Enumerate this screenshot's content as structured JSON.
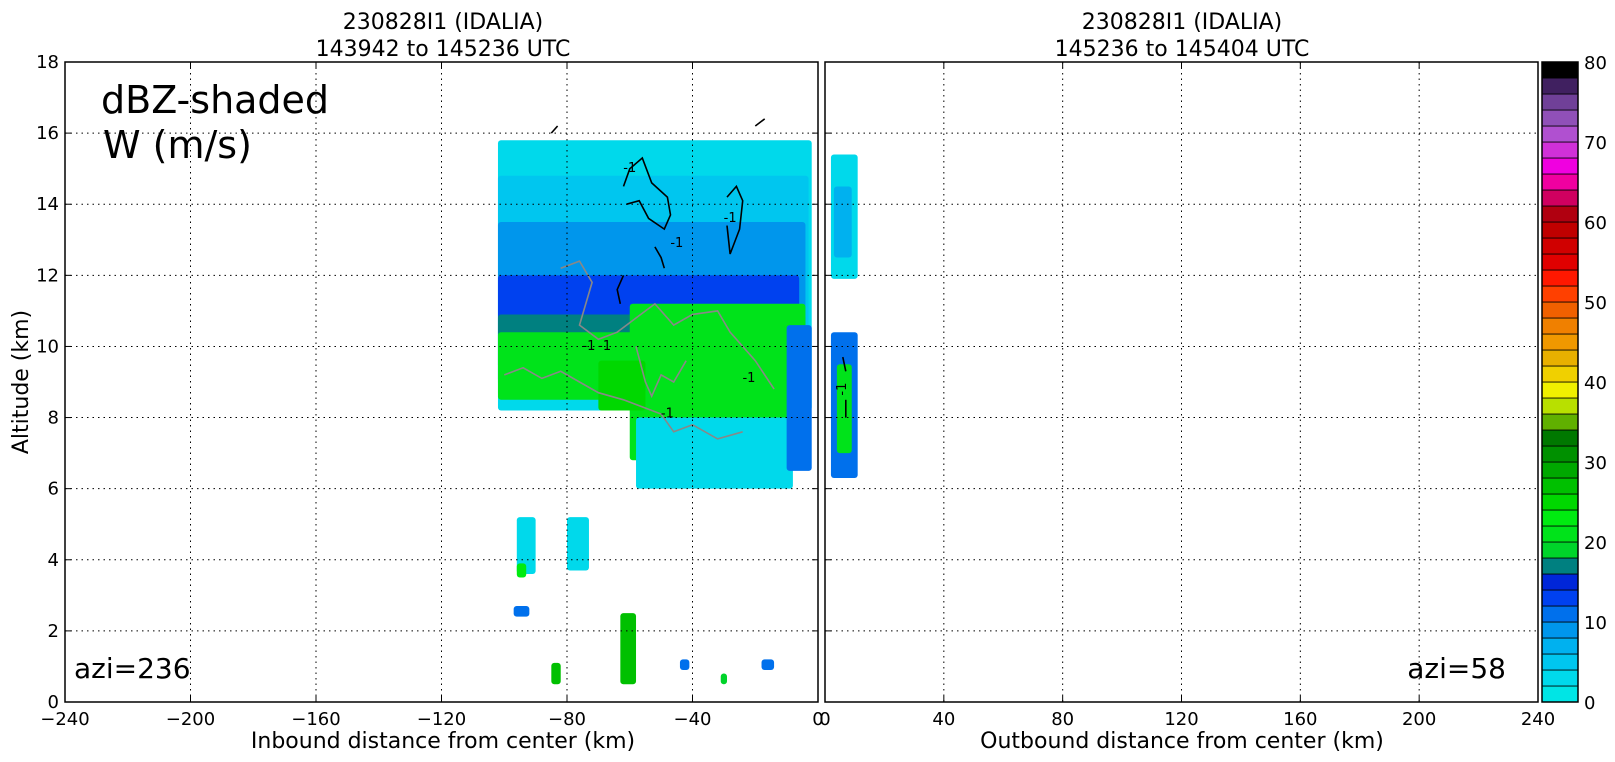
{
  "chart_data": [
    {
      "type": "heatmap",
      "title_line1": "230828I1 (IDALIA)",
      "title_line2": "143942 to 145236 UTC",
      "xlabel": "Inbound distance from center (km)",
      "ylabel": "Altitude (km)",
      "xlim": [
        -240,
        0
      ],
      "ylim": [
        0,
        18
      ],
      "xticks": [
        -240,
        -200,
        -160,
        -120,
        -80,
        -40,
        0
      ],
      "xtick_labels": [
        "−240",
        "−200",
        "−160",
        "−120",
        "−80",
        "−40",
        "0"
      ],
      "yticks": [
        0,
        2,
        4,
        6,
        8,
        10,
        12,
        14,
        16,
        18
      ],
      "grid": true,
      "annotation_main_line1": "dBZ-shaded",
      "annotation_main_line2": "W (m/s)",
      "annotation_azi": "azi=236",
      "contour_label": "-1",
      "reflectivity_regions": [
        {
          "dbz": 2,
          "x": [
            -102,
            -2
          ],
          "y": [
            8.2,
            15.8
          ]
        },
        {
          "dbz": 5,
          "x": [
            -102,
            -3
          ],
          "y": [
            8.6,
            14.8
          ]
        },
        {
          "dbz": 8,
          "x": [
            -102,
            -4
          ],
          "y": [
            8.9,
            13.5
          ]
        },
        {
          "dbz": 12,
          "x": [
            -102,
            -6
          ],
          "y": [
            9.0,
            12.0
          ]
        },
        {
          "dbz": 16,
          "x": [
            -102,
            -4
          ],
          "y": [
            9.4,
            10.9
          ]
        },
        {
          "dbz": 21,
          "x": [
            -102,
            -4
          ],
          "y": [
            8.5,
            10.4
          ]
        },
        {
          "dbz": 21,
          "x": [
            -60,
            -4
          ],
          "y": [
            6.8,
            11.2
          ]
        },
        {
          "dbz": 24,
          "x": [
            -70,
            -55
          ],
          "y": [
            8.2,
            9.6
          ]
        },
        {
          "dbz": 3,
          "x": [
            -58,
            -8
          ],
          "y": [
            6.0,
            8.0
          ]
        },
        {
          "dbz": 10,
          "x": [
            -10,
            -2
          ],
          "y": [
            6.5,
            10.6
          ]
        },
        {
          "dbz": 2,
          "x": [
            -96,
            -90
          ],
          "y": [
            3.6,
            5.2
          ]
        },
        {
          "dbz": 2,
          "x": [
            -80,
            -73
          ],
          "y": [
            3.7,
            5.2
          ]
        },
        {
          "dbz": 22,
          "x": [
            -96,
            -93
          ],
          "y": [
            3.5,
            3.9
          ]
        },
        {
          "dbz": 10,
          "x": [
            -97,
            -92
          ],
          "y": [
            2.4,
            2.7
          ]
        },
        {
          "dbz": 26,
          "x": [
            -63,
            -58
          ],
          "y": [
            0.5,
            2.5
          ]
        },
        {
          "dbz": 26,
          "x": [
            -85,
            -82
          ],
          "y": [
            0.5,
            1.1
          ]
        },
        {
          "dbz": 10,
          "x": [
            -44,
            -41
          ],
          "y": [
            0.9,
            1.2
          ]
        },
        {
          "dbz": 10,
          "x": [
            -18,
            -14
          ],
          "y": [
            0.9,
            1.2
          ]
        },
        {
          "dbz": 18,
          "x": [
            -31,
            -29
          ],
          "y": [
            0.5,
            0.8
          ]
        }
      ]
    },
    {
      "type": "heatmap",
      "title_line1": "230828I1 (IDALIA)",
      "title_line2": "145236 to 145404 UTC",
      "xlabel": "Outbound distance from center (km)",
      "ylabel": "",
      "xlim": [
        0,
        240
      ],
      "ylim": [
        0,
        18
      ],
      "xticks": [
        0,
        40,
        80,
        120,
        160,
        200,
        240
      ],
      "xtick_labels": [
        "0",
        "40",
        "80",
        "120",
        "160",
        "200",
        "240"
      ],
      "grid": true,
      "annotation_azi": "azi=58",
      "contour_label": "-1",
      "reflectivity_regions": [
        {
          "dbz": 3,
          "x": [
            2,
            11
          ],
          "y": [
            11.9,
            15.4
          ]
        },
        {
          "dbz": 7,
          "x": [
            3,
            9
          ],
          "y": [
            12.5,
            14.5
          ]
        },
        {
          "dbz": 11,
          "x": [
            2,
            11
          ],
          "y": [
            6.3,
            10.4
          ]
        },
        {
          "dbz": 21,
          "x": [
            4,
            9
          ],
          "y": [
            7.0,
            9.5
          ]
        }
      ]
    }
  ],
  "colorbar": {
    "min": 0,
    "max": 80,
    "step": 2,
    "ticks": [
      0,
      10,
      20,
      30,
      40,
      50,
      60,
      70,
      80
    ],
    "colors": [
      "#00e5e5",
      "#00d9eb",
      "#00c6ef",
      "#00b1ef",
      "#0096ec",
      "#0070ec",
      "#0041ef",
      "#0026d9",
      "#008080",
      "#00d42a",
      "#00e31a",
      "#00eb10",
      "#00d800",
      "#00c000",
      "#00a800",
      "#009000",
      "#007800",
      "#60b000",
      "#b8e000",
      "#f0f000",
      "#f0d000",
      "#e8b000",
      "#f09800",
      "#f08000",
      "#f06000",
      "#ff4000",
      "#ff1800",
      "#e00000",
      "#d00000",
      "#c00000",
      "#b00010",
      "#d00060",
      "#f000a0",
      "#f000e0",
      "#d030d8",
      "#b050d0",
      "#9050b8",
      "#704098",
      "#402060",
      "#000000"
    ]
  }
}
